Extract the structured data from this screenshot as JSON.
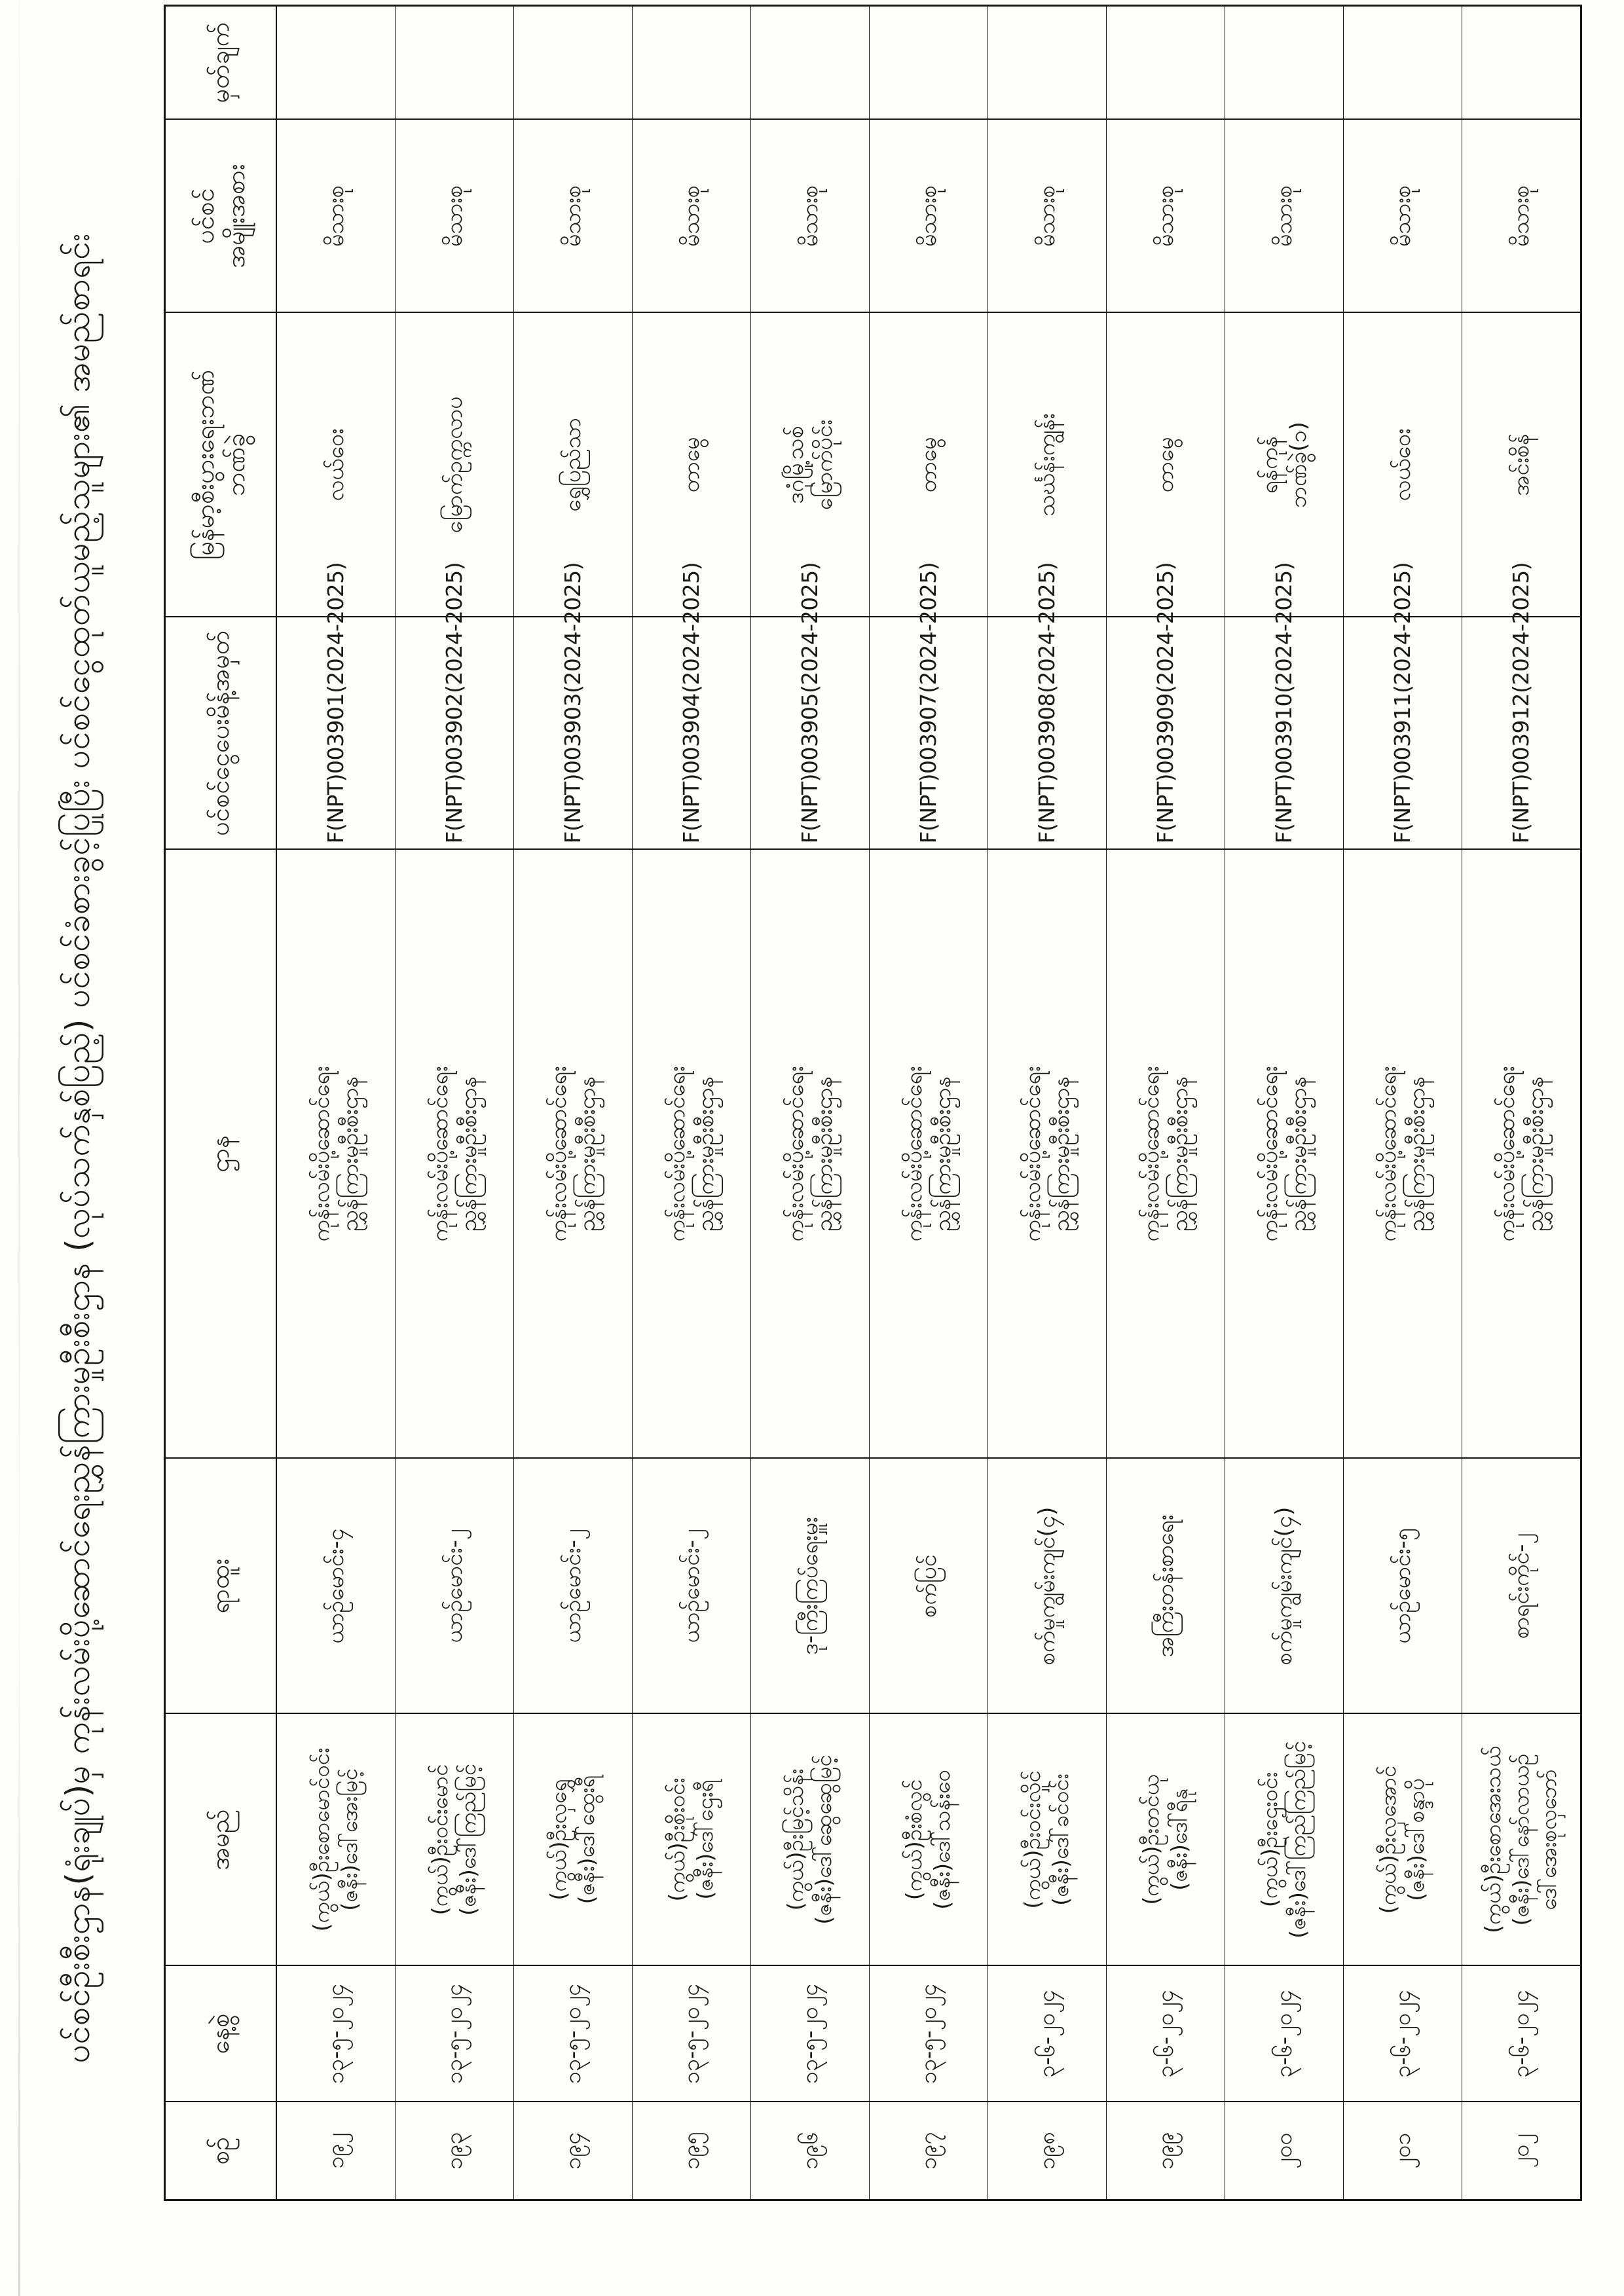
{
  "title": "ပင်စင်ဦးစီးဌာန(ရုံးချုပ်)မှ ကုန်းလမ်းပို့ဆောင်ရေးညွှန်ကြားမှုဦးစီးဌာန (လုပ်သက်နှစ်ပြည့်) ပင်စင်ခံစားခွင့်ပြုပြီး ပင်စင်ငွေထုတ်ယူမည့်သူများ၏ အမည်စာရင်း",
  "table": {
    "headers": {
      "serial": "စဉ်",
      "date": "နေ့စွဲ",
      "name": "အမည်",
      "position": "ရာထူး",
      "department": "ဌာန",
      "order_no": "ပင်စင်ငွေပေးမိန့်အမှတ်",
      "bank_line1": "မြန်မာ့စီးပွားရေးဘဏ်",
      "bank_line2": "ဘဏ်ခွဲ",
      "pension_line1": "ပင်စင်",
      "pension_line2": "အမျိုးအစား",
      "remark": "မှတ်ချက်"
    },
    "department_lines": [
      "ကုန်းလမ်းပို့ဆောင်ရေး",
      "ညွှန်ကြားမှုဦးစီးဌာန"
    ],
    "pension_type": "မိသားစု",
    "rows": [
      {
        "serial": "၁၉၂",
        "date": "၁၃-၅-၂၀၂၄",
        "name_lines": [
          "(ကွယ်)ဦးစောမောင်ဝင်း",
          "(ဇနီး)ဒေါ်အေးမြင့်"
        ],
        "position": "ယာဉ်မောင်း-၄",
        "order_no": "F(NPT)003901(2024-2025)",
        "bank_lines": [
          "လယ်ဝေး"
        ],
        "pension_type": "မိသားစု",
        "remark": ""
      },
      {
        "serial": "၁၉၃",
        "date": "၁၃-၅-၂၀၂၄",
        "name_lines": [
          "(ကွယ်)ဦးဝင်းမောင်",
          "(ဇနီး)ဒေါ်ကြည်မြင့်"
        ],
        "position": "ယာဉ်မောင်း-၂",
        "order_no": "F(NPT)003902(2024-2025)",
        "bank_lines": [
          "မြောက်ဥက္ကလာပ"
        ],
        "pension_type": "မိသားစု",
        "remark": ""
      },
      {
        "serial": "၁၉၄",
        "date": "၁၃-၅-၂၀၂၄",
        "name_lines": [
          "(ကွယ်)ဦးလှရွှေ",
          "(ဇနီး)ဒေါ်ထွေးရီ"
        ],
        "position": "ယာဉ်မောင်း-၂",
        "order_no": "F(NPT)003903(2024-2025)",
        "bank_lines": [
          "ရွှေပြည်သာ"
        ],
        "pension_type": "မိသားစု",
        "remark": ""
      },
      {
        "serial": "၁၉၅",
        "date": "၁၃-၅-၂၀၂၄",
        "name_lines": [
          "(ကွယ်)ဦးစိုးဝင်း",
          "(ဇနီး)ဒေါ်ဌေးရီ"
        ],
        "position": "ယာဉ်မောင်း-၂",
        "order_no": "F(NPT)003904(2024-2025)",
        "bank_lines": [
          "တာမွေ"
        ],
        "pension_type": "မိသားစု",
        "remark": ""
      },
      {
        "serial": "၁၉၆",
        "date": "၁၃-၅-၂၀၂၄",
        "name_lines": [
          "(ကွယ်)ဦးမြင့်သိန်း",
          "(ဇနီး)ဒေါ်ဆွေဆွေမြင့်"
        ],
        "position": "ဒု-ကြီးကြပ်ရေးမှူး",
        "order_no": "F(NPT)003905(2024-2025)",
        "bank_lines": [
          "ဒဂုံမြို့သစ်",
          "မြောက်ပိုင်း"
        ],
        "pension_type": "မိသားစု",
        "remark": ""
      },
      {
        "serial": "၁၉၇",
        "date": "၁၃-၅-၂၀၂၄",
        "name_lines": [
          "(ကွယ်)ဦးစံလွင်",
          "(ဇနီး)ဒေါ်သန်းဝေ"
        ],
        "position": "စက်ပြင်",
        "order_no": "F(NPT)003907(2024-2025)",
        "bank_lines": [
          "တာမွေ"
        ],
        "pension_type": "မိသားစု",
        "remark": ""
      },
      {
        "serial": "၁၉၈",
        "date": "၃-၆-၂၀၂၄",
        "name_lines": [
          "(ကွယ်)ဦးဝင်းလှိုင်",
          "(ဇနီး)ဒေါ်ခင်ဝင်း"
        ],
        "position": "စက်မှုကျွမ်းကျင်(၄)",
        "order_no": "F(NPT)003908(2024-2025)",
        "bank_lines": [
          "သင်္ဃန်းကျွန်း"
        ],
        "pension_type": "မိသားစု",
        "remark": ""
      },
      {
        "serial": "၁၉၉",
        "date": "၃-၆-၂၀၂၄",
        "name_lines": [
          "(ကွယ်)ဦးတင်ယု",
          "(ဇနီး)ဒေါ်ရီနု"
        ],
        "position": "အကြီးတန်းစာရေး",
        "order_no": "F(NPT)003909(2024-2025)",
        "bank_lines": [
          "တာမွေ"
        ],
        "pension_type": "မိသားစု",
        "remark": ""
      },
      {
        "serial": "၂၀၀",
        "date": "၃-၆-၂၀၂၄",
        "name_lines": [
          "(ကွယ်)ဦးဌေးဝင်း",
          "(ဇနီး)ဒေါ်ကြည်ကြည်မြင့်"
        ],
        "position": "စက်မှုကျွမ်းကျင်(၄)",
        "order_no": "F(NPT)003910(2024-2025)",
        "bank_lines": [
          "ရန်ကုန်",
          "ဘဏ်ခွဲ(၁)"
        ],
        "pension_type": "မိသားစု",
        "remark": ""
      },
      {
        "serial": "၂၀၁",
        "date": "၃-၆-၂၀၂၄",
        "name_lines": [
          "(ကွယ်)ဦးလှအောင်",
          "(ဇနီး)ဒေါ်စန္ဒာပို"
        ],
        "position": "ယာဉ်မောင်း-၅",
        "order_no": "F(NPT)003911(2024-2025)",
        "bank_lines": [
          "လယ်ဝေး"
        ],
        "pension_type": "မိသားစု",
        "remark": ""
      },
      {
        "serial": "၂၀၂",
        "date": "၃-၆-၂၀၂၄",
        "name_lines": [
          "(ကွယ်)ဦးစောအေးသယ်",
          "(ဇနီး)ဒေါ်နော်လာယဉ်",
          "ဒေါ်အေးစုလှဘော်"
        ],
        "position": "စာရင်းကိုင်-၂",
        "order_no": "F(NPT)003912(2024-2025)",
        "bank_lines": [
          "အင်းစိန်"
        ],
        "pension_type": "မိသားစု",
        "remark": ""
      }
    ]
  }
}
